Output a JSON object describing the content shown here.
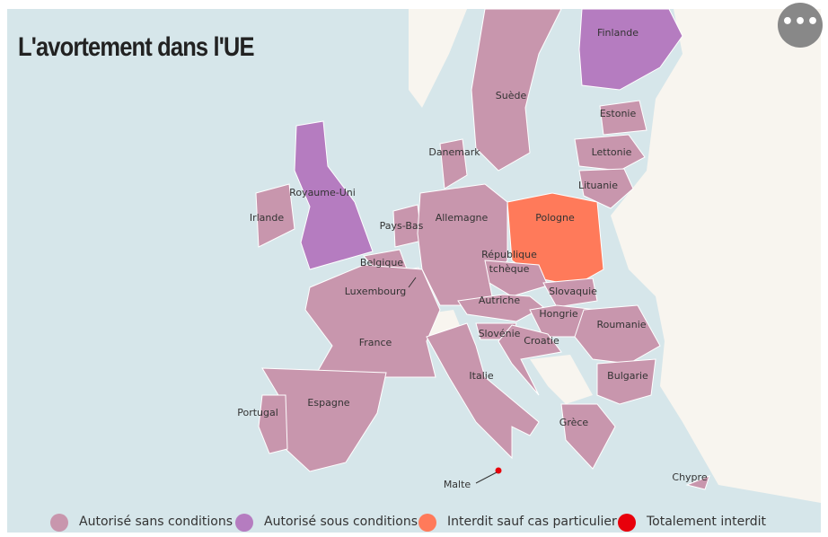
{
  "title": "L'avortement dans l'UE",
  "legend": [
    {
      "label": "Autorisé sans conditions",
      "color": "#c896ad"
    },
    {
      "label": "Autorisé sous conditions",
      "color": "#b57cc0"
    },
    {
      "label": "Interdit sauf cas particulier",
      "color": "#ff7a5a"
    },
    {
      "label": "Totalement interdit",
      "color": "#e8000b"
    }
  ],
  "countries": [
    {
      "label": "Finlande",
      "color": "#b57cc0"
    },
    {
      "label": "Suède",
      "color": "#c896ad"
    },
    {
      "label": "Estonie",
      "color": "#c896ad"
    },
    {
      "label": "Lettonie",
      "color": "#c896ad"
    },
    {
      "label": "Lituanie",
      "color": "#c896ad"
    },
    {
      "label": "Danemark",
      "color": "#c896ad"
    },
    {
      "label": "Royaume-Uni",
      "color": "#b57cc0"
    },
    {
      "label": "Irlande",
      "color": "#c896ad"
    },
    {
      "label": "Pays-Bas",
      "color": "#c896ad"
    },
    {
      "label": "Allemagne",
      "color": "#c896ad"
    },
    {
      "label": "Pologne",
      "color": "#ff7a5a"
    },
    {
      "label": "Belgique",
      "color": "#c896ad"
    },
    {
      "label": "Luxembourg",
      "color": "#c896ad"
    },
    {
      "label": "République tchèque",
      "color": "#c896ad"
    },
    {
      "label": "Slovaquie",
      "color": "#c896ad"
    },
    {
      "label": "Autriche",
      "color": "#c896ad"
    },
    {
      "label": "Hongrie",
      "color": "#c896ad"
    },
    {
      "label": "Roumanie",
      "color": "#c896ad"
    },
    {
      "label": "Slovénie",
      "color": "#c896ad"
    },
    {
      "label": "Croatie",
      "color": "#c896ad"
    },
    {
      "label": "France",
      "color": "#c896ad"
    },
    {
      "label": "Italie",
      "color": "#c896ad"
    },
    {
      "label": "Espagne",
      "color": "#c896ad"
    },
    {
      "label": "Portugal",
      "color": "#c896ad"
    },
    {
      "label": "Bulgarie",
      "color": "#c896ad"
    },
    {
      "label": "Grèce",
      "color": "#c896ad"
    },
    {
      "label": "Malte",
      "color": "#e8000b"
    },
    {
      "label": "Chypre",
      "color": "#c896ad"
    }
  ]
}
